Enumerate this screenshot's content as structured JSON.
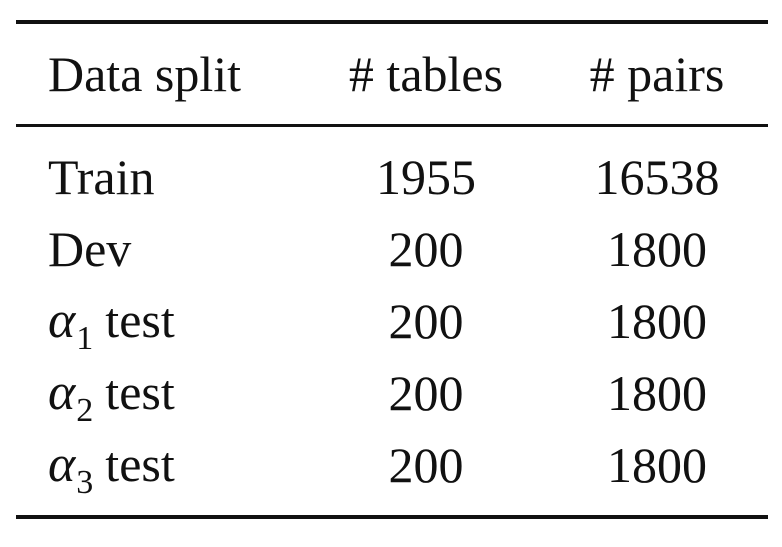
{
  "table": {
    "headers": [
      "Data split",
      "# tables",
      "# pairs"
    ],
    "rows": [
      {
        "split": "Train",
        "tables": "1955",
        "pairs": "16538"
      },
      {
        "split": "Dev",
        "tables": "200",
        "pairs": "1800"
      },
      {
        "split_symbol": "α",
        "split_subscript": "1",
        "split_suffix": "test",
        "tables": "200",
        "pairs": "1800"
      },
      {
        "split_symbol": "α",
        "split_subscript": "2",
        "split_suffix": "test",
        "tables": "200",
        "pairs": "1800"
      },
      {
        "split_symbol": "α",
        "split_subscript": "3",
        "split_suffix": "test",
        "tables": "200",
        "pairs": "1800"
      }
    ]
  }
}
